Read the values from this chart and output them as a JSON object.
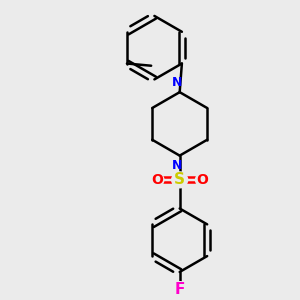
{
  "background_color": "#ebebeb",
  "line_color": "#000000",
  "nitrogen_color": "#0000ff",
  "oxygen_color": "#ff0000",
  "sulfur_color": "#cccc00",
  "fluorine_color": "#ff00cc",
  "line_width": 1.8,
  "figsize": [
    3.0,
    3.0
  ],
  "dpi": 100,
  "xlim": [
    -1.8,
    2.2
  ],
  "ylim": [
    -3.5,
    3.2
  ]
}
